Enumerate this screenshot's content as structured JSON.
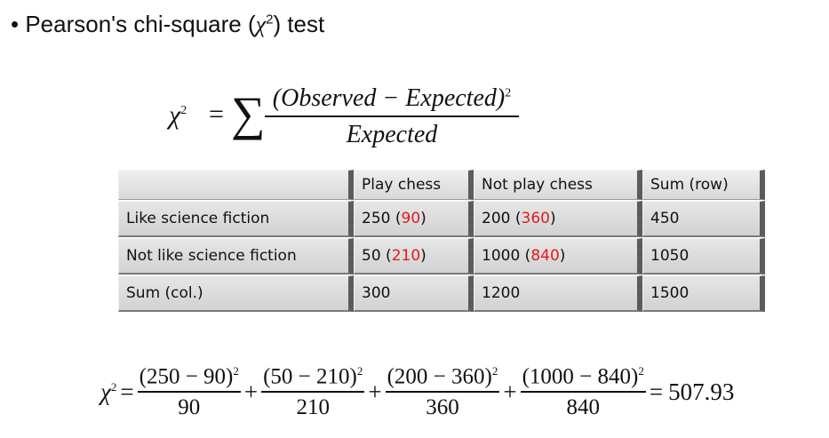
{
  "heading": {
    "bullet": "•",
    "text_before": "Pearson's chi-square (",
    "chi": "χ",
    "power": "2",
    "text_after": ") test"
  },
  "formula": {
    "lhs": "χ",
    "power": "2",
    "equals": "=",
    "sum": "∑",
    "numerator": "(Observed − Expected)",
    "num_power": "2",
    "denominator": "Expected"
  },
  "table": {
    "header": [
      "",
      "Play chess",
      "Not play chess",
      "Sum (row)"
    ],
    "rows": [
      {
        "label": "Like science fiction",
        "play_obs": "250",
        "play_exp": "90",
        "notplay_obs": "200",
        "notplay_exp": "360",
        "sum": "450"
      },
      {
        "label": "Not like science fiction",
        "play_obs": "50",
        "play_exp": "210",
        "notplay_obs": "1000",
        "notplay_exp": "840",
        "sum": "1050"
      },
      {
        "label": "Sum (col.)",
        "play": "300",
        "notplay": "1200",
        "sum": "1500"
      }
    ],
    "expected_color": "#e21b1b"
  },
  "calculation": {
    "lhs": "χ",
    "power": "2",
    "equals": "=",
    "plus": "+",
    "terms": [
      {
        "numerator": "(250 − 90)",
        "denominator": "90"
      },
      {
        "numerator": "(50 − 210)",
        "denominator": "210"
      },
      {
        "numerator": "(200 − 360)",
        "denominator": "360"
      },
      {
        "numerator": "(1000 − 840)",
        "denominator": "840"
      }
    ],
    "result_equals": "=",
    "result": "507.93"
  }
}
